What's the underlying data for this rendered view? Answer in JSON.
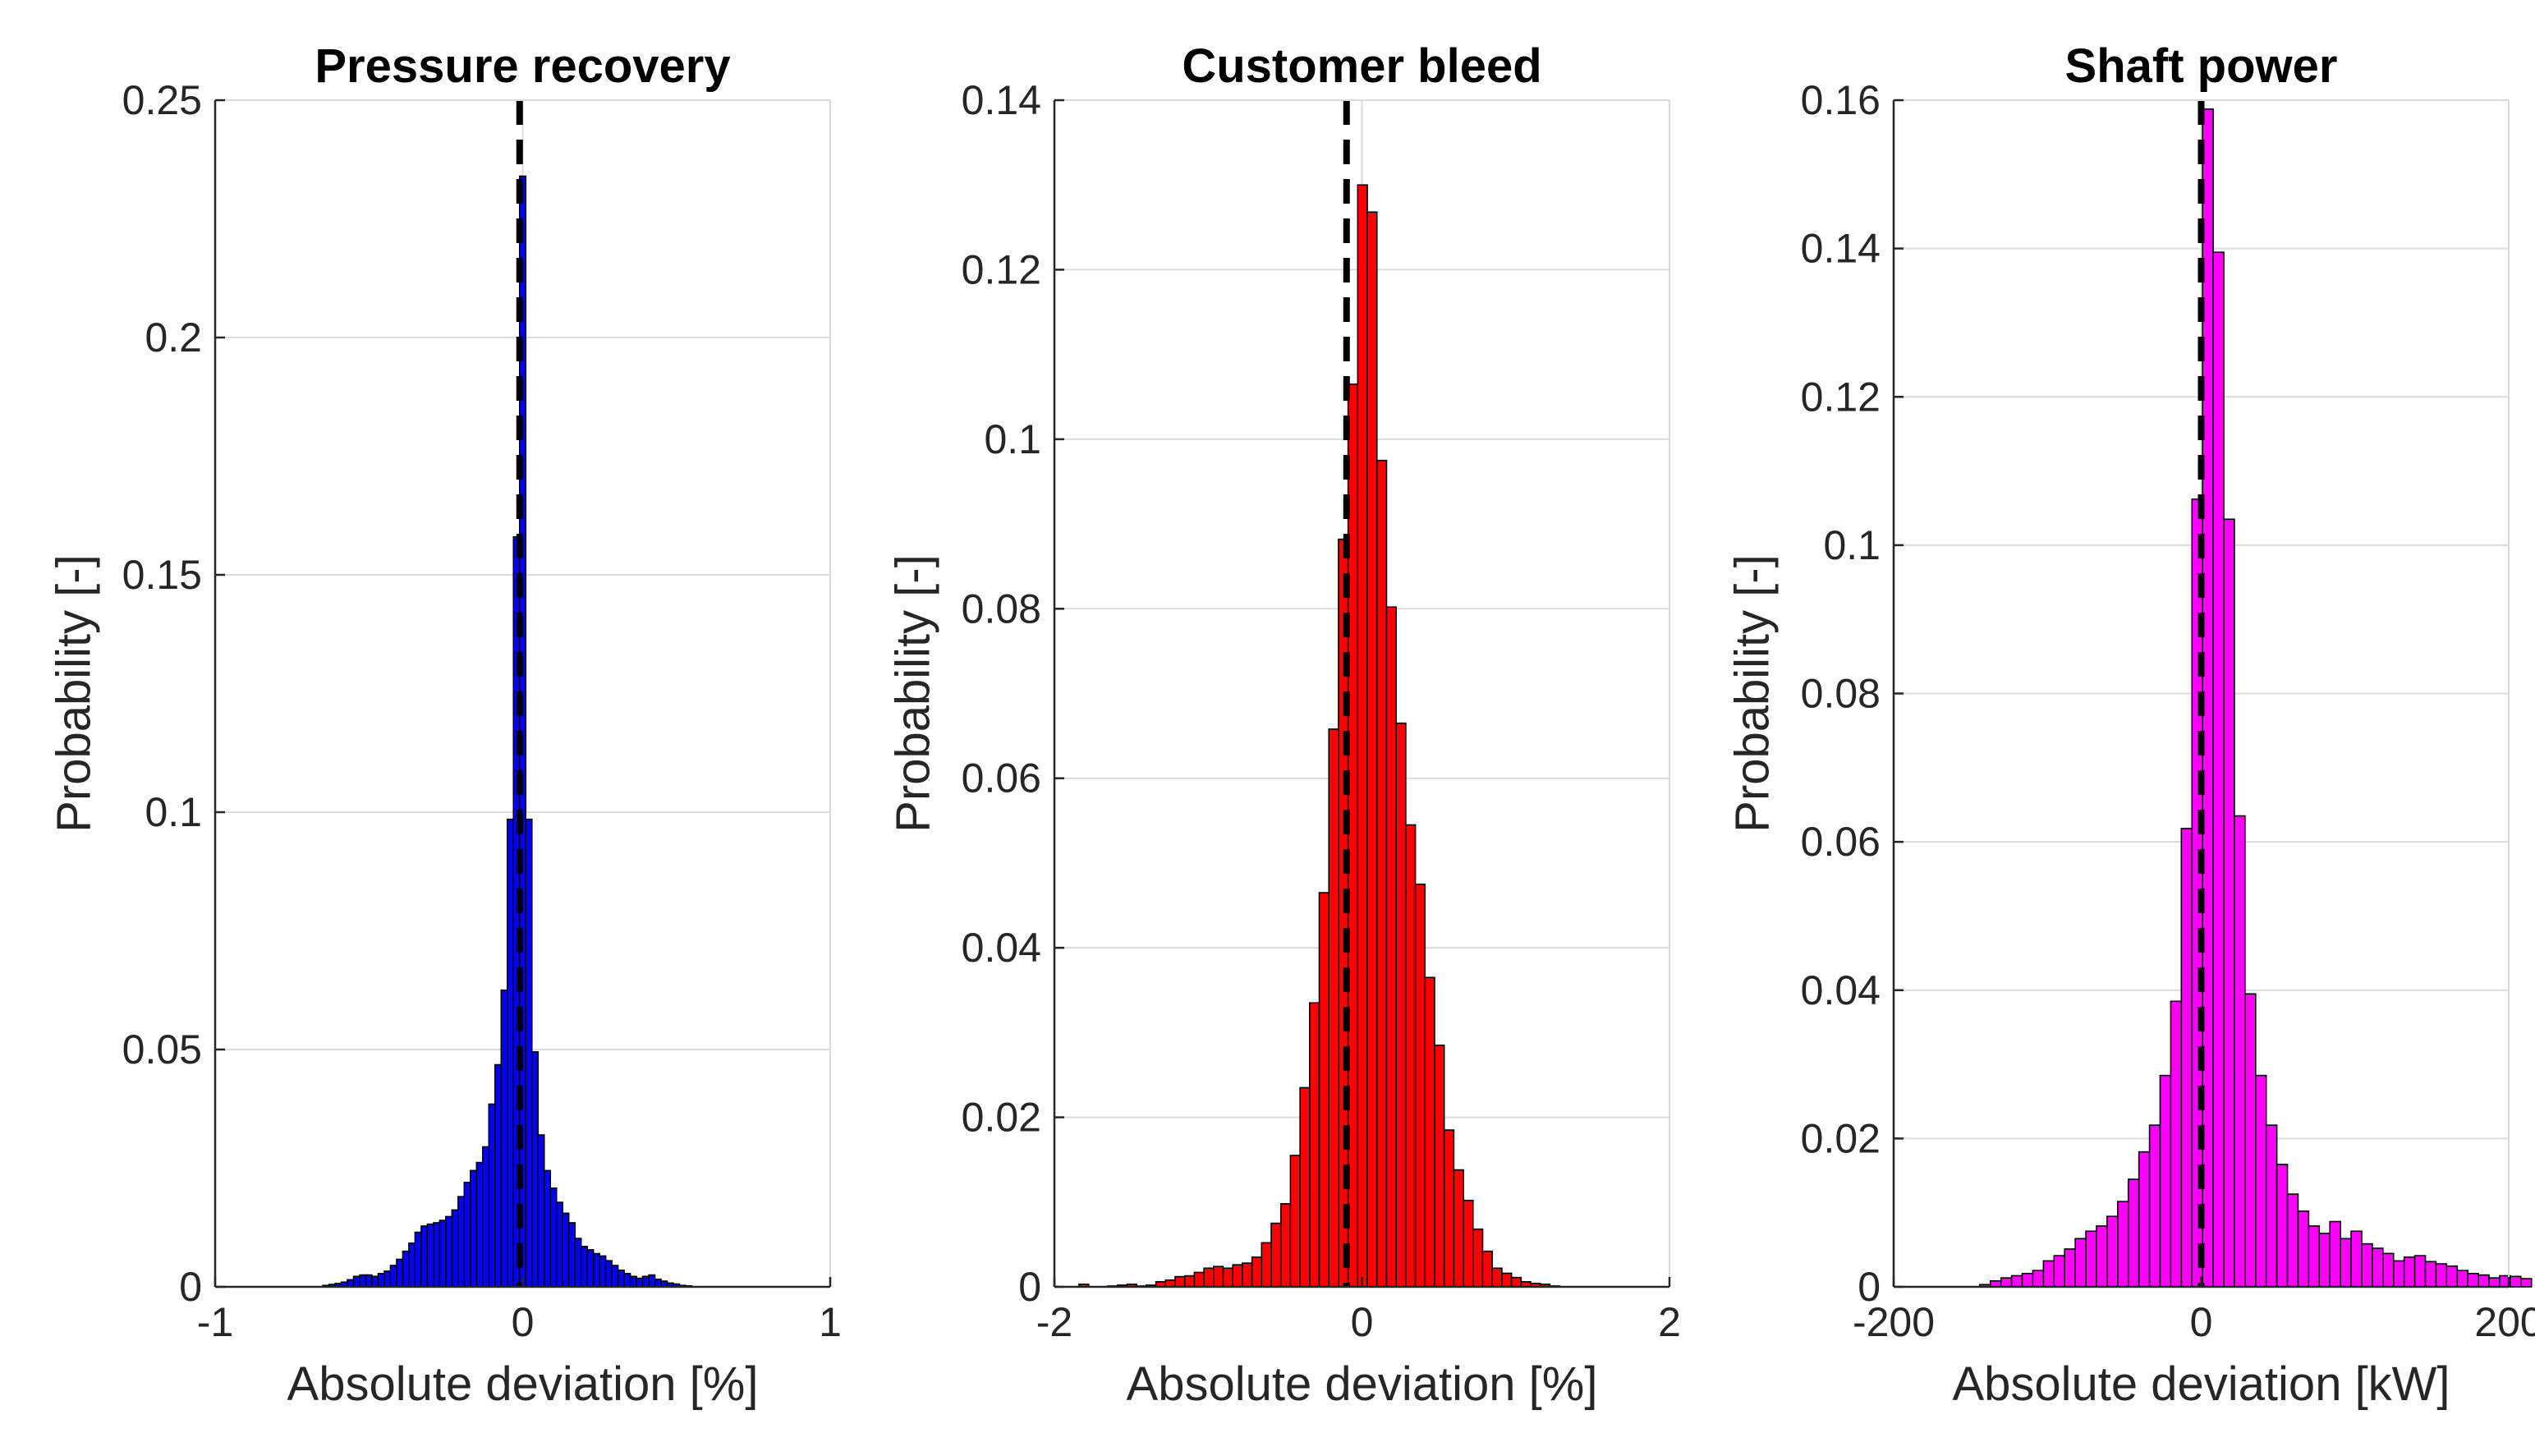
{
  "chart_data": [
    {
      "type": "bar",
      "title": "Pressure recovery",
      "xlabel": "Absolute deviation [%]",
      "ylabel": "Probability [-]",
      "xlim": [
        -1,
        1
      ],
      "ylim": [
        0,
        0.25
      ],
      "xticks": [
        -1,
        0,
        1
      ],
      "xtick_labels": [
        "-1",
        "0",
        "1"
      ],
      "yticks": [
        0,
        0.05,
        0.1,
        0.15,
        0.2,
        0.25
      ],
      "ytick_labels": [
        "0",
        "0.05",
        "0.1",
        "0.15",
        "0.2",
        "0.25"
      ],
      "grid": true,
      "bar_color": "#0000ff",
      "bin_start": -0.65,
      "bin_width": 0.02,
      "values": [
        0.0003,
        0.0005,
        0.0007,
        0.001,
        0.0015,
        0.0022,
        0.0025,
        0.0025,
        0.0022,
        0.0028,
        0.0033,
        0.0045,
        0.0058,
        0.0075,
        0.0092,
        0.0115,
        0.0128,
        0.0132,
        0.0135,
        0.014,
        0.0148,
        0.0162,
        0.019,
        0.022,
        0.0245,
        0.0262,
        0.0295,
        0.0385,
        0.0468,
        0.0625,
        0.0985,
        0.158,
        0.234,
        0.0985,
        0.0495,
        0.032,
        0.0245,
        0.0208,
        0.0178,
        0.0155,
        0.0135,
        0.0102,
        0.0085,
        0.0078,
        0.007,
        0.0065,
        0.0055,
        0.0045,
        0.0035,
        0.0028,
        0.0022,
        0.0018,
        0.0022,
        0.0025,
        0.0016,
        0.0012,
        0.0008,
        0.0006,
        0.0003,
        0.0002
      ],
      "mean_line_x": -0.01
    },
    {
      "type": "bar",
      "title": "Customer bleed",
      "xlabel": "Absolute deviation [%]",
      "ylabel": "Probability [-]",
      "xlim": [
        -2,
        2
      ],
      "ylim": [
        0,
        0.14
      ],
      "xticks": [
        -2,
        0,
        2
      ],
      "xtick_labels": [
        "-2",
        "0",
        "2"
      ],
      "yticks": [
        0,
        0.02,
        0.04,
        0.06,
        0.08,
        0.1,
        0.12,
        0.14
      ],
      "ytick_labels": [
        "0",
        "0.02",
        "0.04",
        "0.06",
        "0.08",
        "0.1",
        "0.12",
        "0.14"
      ],
      "grid": true,
      "bar_color": "#ff0000",
      "bin_start": -1.84,
      "bin_width": 0.0625,
      "values": [
        0.0003,
        0,
        0,
        0.0001,
        0.0002,
        0.0003,
        0.0001,
        0.0002,
        0.0006,
        0.0008,
        0.0012,
        0.0013,
        0.0017,
        0.0022,
        0.0024,
        0.0022,
        0.0026,
        0.0028,
        0.0035,
        0.0052,
        0.0075,
        0.0098,
        0.0155,
        0.0235,
        0.0335,
        0.0465,
        0.0658,
        0.0882,
        0.1065,
        0.13,
        0.1268,
        0.0975,
        0.0802,
        0.0665,
        0.0545,
        0.0475,
        0.0365,
        0.0285,
        0.0185,
        0.0138,
        0.0102,
        0.0068,
        0.0042,
        0.0022,
        0.0016,
        0.0011,
        0.0006,
        0.0004,
        0.0003,
        0.0001
      ],
      "mean_line_x": -0.1
    },
    {
      "type": "bar",
      "title": "Shaft power",
      "xlabel": "Absolute deviation [kW]",
      "ylabel": "Probability [-]",
      "xlim": [
        -200,
        200
      ],
      "ylim": [
        0,
        0.16
      ],
      "xticks": [
        -200,
        0,
        200
      ],
      "xtick_labels": [
        "-200",
        "0",
        "200"
      ],
      "yticks": [
        0,
        0.02,
        0.04,
        0.06,
        0.08,
        0.1,
        0.12,
        0.14,
        0.16
      ],
      "ytick_labels": [
        "0",
        "0.02",
        "0.04",
        "0.06",
        "0.08",
        "0.1",
        "0.12",
        "0.14",
        "0.16"
      ],
      "grid": true,
      "bar_color": "#ff00ff",
      "bin_start": -144,
      "bin_width": 6.9,
      "values": [
        0.0003,
        0.0008,
        0.0012,
        0.0015,
        0.0018,
        0.0022,
        0.0035,
        0.0042,
        0.0051,
        0.0065,
        0.0075,
        0.0082,
        0.0095,
        0.0115,
        0.0145,
        0.0182,
        0.0218,
        0.0285,
        0.0385,
        0.0618,
        0.1062,
        0.1588,
        0.1395,
        0.1035,
        0.0635,
        0.0395,
        0.0285,
        0.0218,
        0.0165,
        0.0125,
        0.0102,
        0.0082,
        0.0072,
        0.0088,
        0.0065,
        0.0075,
        0.0058,
        0.0052,
        0.0045,
        0.0035,
        0.004,
        0.0042,
        0.0034,
        0.0031,
        0.0028,
        0.0022,
        0.0018,
        0.0016,
        0.0012,
        0.0015,
        0.0014,
        0.0011
      ],
      "mean_line_x": 0
    }
  ]
}
